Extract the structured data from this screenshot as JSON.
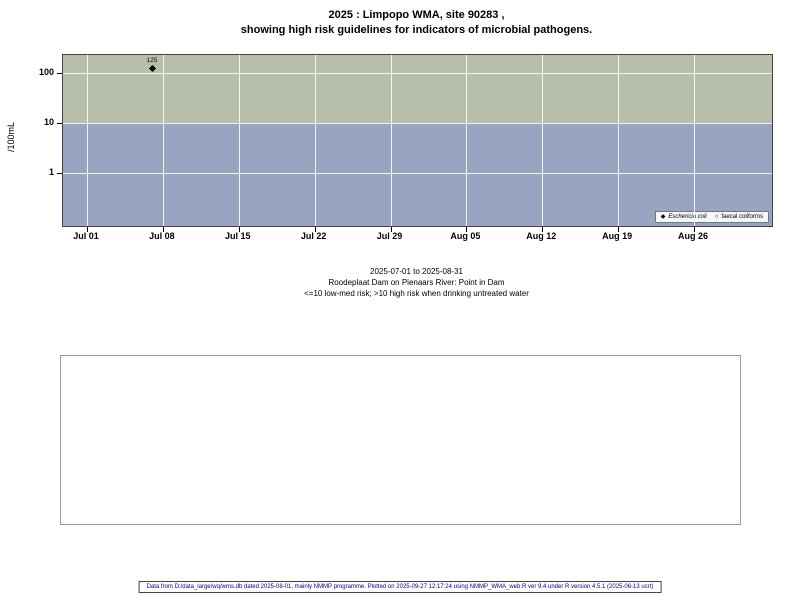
{
  "title": {
    "line1": "2025 : Limpopo WMA, site 90283 ,",
    "line2": "showing high risk guidelines for indicators of microbial pathogens."
  },
  "chart_data": {
    "type": "scatter",
    "title": "2025 : Limpopo WMA, site 90283 , showing high risk guidelines for indicators of microbial pathogens.",
    "xlabel": "",
    "ylabel": "/100mL",
    "y_scale": "log10",
    "y_ticks": [
      1,
      10,
      100
    ],
    "x_ticks": [
      "Jul 01",
      "Jul 08",
      "Jul 15",
      "Jul 22",
      "Jul 29",
      "Aug 05",
      "Aug 12",
      "Aug 19",
      "Aug 26"
    ],
    "x_range": [
      "2025-07-01",
      "2025-08-31"
    ],
    "grid": true,
    "legend_position": "bottom-right",
    "risk_threshold": 10,
    "bands": [
      {
        "label": "high risk (>10)",
        "color": "#b7bfaa"
      },
      {
        "label": "low-med risk (<=10)",
        "color": "#98a5c0"
      }
    ],
    "series": [
      {
        "name": "Eschericia coli",
        "marker": "diamond",
        "points": [
          {
            "date": "2025-07-07",
            "value": 125,
            "label": "125"
          }
        ]
      },
      {
        "name": "faecal coliforms",
        "marker": "circle",
        "points": []
      }
    ]
  },
  "legend": {
    "items": [
      {
        "marker": "◆",
        "label": "Eschericia coli"
      },
      {
        "marker": "○",
        "label": "faecal coliforms"
      }
    ]
  },
  "caption": {
    "line1": "2025-07-01 to 2025-08-31",
    "line2": "Roodeplaat Dam on Pienaars River: Point in Dam",
    "line3": "<=10 low-med risk; >10 high risk when drinking untreated water"
  },
  "footer": {
    "text": "Data from D:/data_large/wq/wms.db dated 2025-08-01, mainly NMMP programme. Plotted on 2025-09-27 12:17:24 using NMMP_WMA_web.R ver 9.4 under R version 4.5.1 (2025-06-13 ucrt)"
  }
}
